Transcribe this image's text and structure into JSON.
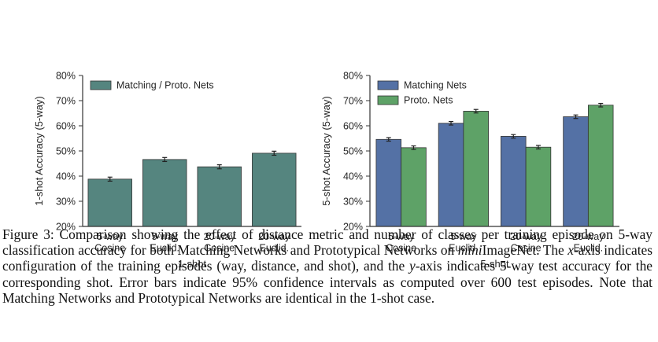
{
  "chart_data": [
    {
      "type": "bar",
      "categories": [
        "5-way\nCosine",
        "5-way\nEuclid.",
        "20-way\nCosine",
        "20-way\nEuclid."
      ],
      "series": [
        {
          "name": "Matching / Proto. Nets",
          "values": [
            38.8,
            46.6,
            43.7,
            49.1
          ],
          "errors": [
            0.8,
            0.8,
            0.8,
            0.8
          ],
          "color": "#55857f"
        }
      ],
      "xlabel": "1-shot",
      "ylabel": "1-shot Accuracy (5-way)",
      "ylim": [
        20,
        80
      ],
      "yticks": [
        "20%",
        "30%",
        "40%",
        "50%",
        "60%",
        "70%",
        "80%"
      ],
      "legend": "top-left",
      "grid": false
    },
    {
      "type": "bar",
      "categories": [
        "5-way\nCosine",
        "5-way\nEuclid.",
        "20-way\nCosine",
        "20-way\nEuclid."
      ],
      "series": [
        {
          "name": "Matching Nets",
          "values": [
            54.6,
            61.0,
            55.8,
            63.6
          ],
          "errors": [
            0.7,
            0.7,
            0.7,
            0.7
          ],
          "color": "#5471a5"
        },
        {
          "name": "Proto. Nets",
          "values": [
            51.3,
            65.8,
            51.5,
            68.2
          ],
          "errors": [
            0.7,
            0.7,
            0.7,
            0.7
          ],
          "color": "#5ea267"
        }
      ],
      "xlabel": "5-shot",
      "ylabel": "5-shot Accuracy (5-way)",
      "ylim": [
        20,
        80
      ],
      "yticks": [
        "20%",
        "30%",
        "40%",
        "50%",
        "60%",
        "70%",
        "80%"
      ],
      "legend": "top-left",
      "grid": false
    }
  ],
  "caption": {
    "label": "Figure 3:",
    "part1": " Comparison showing the effect of distance metric and number of classes per training episode on 5-way classification accuracy for both Matching Networks and Prototypical Networks on ",
    "mini": "mini",
    "part2": "ImageNet. The ",
    "x_var": "x",
    "part3": "-axis indicates configuration of the training episodes (way, distance, and shot), and the ",
    "y_var": "y",
    "part4": "-axis indicates 5-way test accuracy for the corresponding shot. Error bars indicate 95% confidence intervals as computed over 600 test episodes. Note that Matching Networks and Prototypical Networks are identical in the 1-shot case."
  }
}
